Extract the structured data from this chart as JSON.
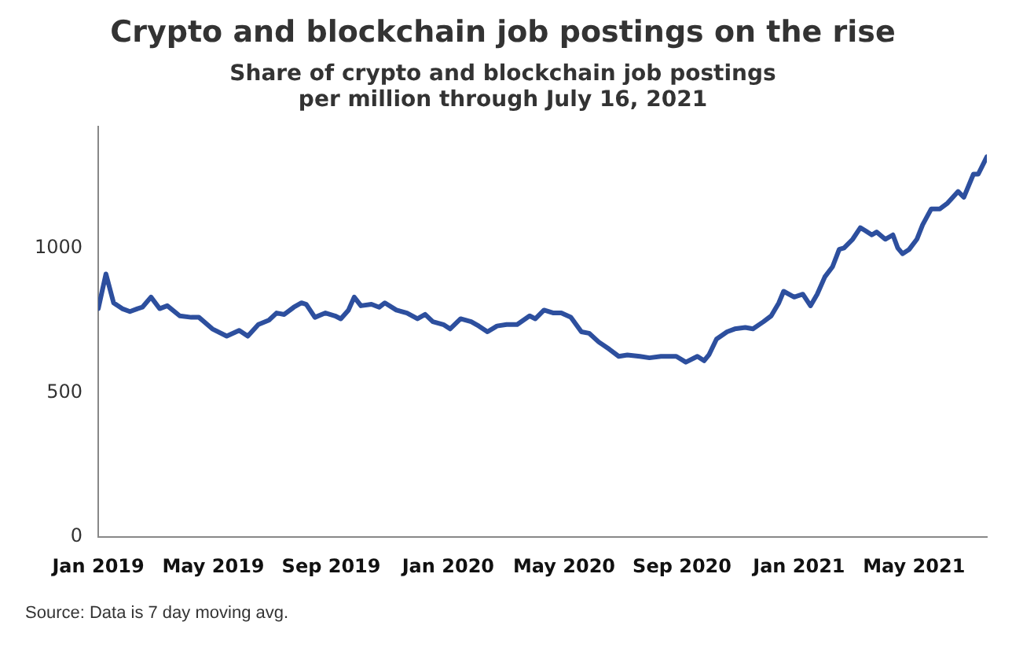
{
  "chart_data": {
    "type": "line",
    "title": "Crypto and blockchain job postings on the rise",
    "subtitle": "Share of crypto and blockchain job postings\nper million through July 16, 2021",
    "annotations": [
      "Source: Data is 7 day moving avg."
    ],
    "x": [
      "2019-01-01",
      "2019-01-09",
      "2019-01-17",
      "2019-01-26",
      "2019-02-03",
      "2019-02-11",
      "2019-02-16",
      "2019-02-25",
      "2019-03-06",
      "2019-03-14",
      "2019-03-27",
      "2019-04-08",
      "2019-04-16",
      "2019-04-30",
      "2019-05-15",
      "2019-05-28",
      "2019-06-06",
      "2019-06-17",
      "2019-06-28",
      "2019-07-06",
      "2019-07-14",
      "2019-07-24",
      "2019-08-01",
      "2019-08-06",
      "2019-08-15",
      "2019-08-26",
      "2019-09-05",
      "2019-09-11",
      "2019-09-19",
      "2019-09-25",
      "2019-10-02",
      "2019-10-13",
      "2019-10-21",
      "2019-10-27",
      "2019-11-08",
      "2019-11-19",
      "2019-11-30",
      "2019-12-08",
      "2019-12-16",
      "2019-12-27",
      "2020-01-03",
      "2020-01-14",
      "2020-01-25",
      "2020-02-02",
      "2020-02-11",
      "2020-02-21",
      "2020-03-02",
      "2020-03-13",
      "2020-03-26",
      "2020-04-01",
      "2020-04-10",
      "2020-04-20",
      "2020-04-28",
      "2020-05-08",
      "2020-05-19",
      "2020-05-27",
      "2020-06-06",
      "2020-06-17",
      "2020-06-27",
      "2020-07-06",
      "2020-07-19",
      "2020-07-29",
      "2020-08-10",
      "2020-08-18",
      "2020-08-26",
      "2020-09-05",
      "2020-09-17",
      "2020-09-24",
      "2020-09-29",
      "2020-10-07",
      "2020-10-18",
      "2020-10-26",
      "2020-11-06",
      "2020-11-14",
      "2020-11-25",
      "2020-12-03",
      "2020-12-11",
      "2020-12-16",
      "2020-12-27",
      "2021-01-05",
      "2021-01-13",
      "2021-01-20",
      "2021-01-28",
      "2021-02-05",
      "2021-02-12",
      "2021-02-17",
      "2021-02-26",
      "2021-03-06",
      "2021-03-11",
      "2021-03-18",
      "2021-03-23",
      "2021-04-01",
      "2021-04-09",
      "2021-04-14",
      "2021-04-19",
      "2021-04-26",
      "2021-05-04",
      "2021-05-10",
      "2021-05-19",
      "2021-05-28",
      "2021-06-05",
      "2021-06-16",
      "2021-06-22",
      "2021-07-02",
      "2021-07-07",
      "2021-07-16"
    ],
    "series": [
      {
        "color": "#2d4f9e",
        "values": [
          790,
          910,
          810,
          790,
          780,
          790,
          795,
          830,
          790,
          800,
          765,
          760,
          760,
          720,
          695,
          715,
          695,
          735,
          750,
          775,
          770,
          795,
          810,
          805,
          760,
          775,
          765,
          755,
          785,
          830,
          800,
          805,
          795,
          810,
          785,
          775,
          755,
          770,
          745,
          735,
          720,
          755,
          745,
          730,
          710,
          730,
          735,
          735,
          765,
          755,
          785,
          775,
          775,
          760,
          710,
          705,
          675,
          650,
          625,
          630,
          625,
          620,
          625,
          625,
          625,
          605,
          625,
          610,
          630,
          685,
          710,
          720,
          725,
          720,
          745,
          765,
          810,
          850,
          830,
          840,
          800,
          840,
          900,
          935,
          995,
          1000,
          1030,
          1070,
          1060,
          1045,
          1055,
          1030,
          1045,
          1000,
          980,
          995,
          1030,
          1080,
          1135,
          1135,
          1155,
          1195,
          1175,
          1255,
          1255,
          1315
        ]
      }
    ],
    "xlim": [
      "2019-01-01",
      "2021-07-16"
    ],
    "xticks": [
      {
        "value": "2019-01-01",
        "label": "Jan 2019"
      },
      {
        "value": "2019-05-01",
        "label": "May 2019"
      },
      {
        "value": "2019-09-01",
        "label": "Sep 2019"
      },
      {
        "value": "2020-01-01",
        "label": "Jan 2020"
      },
      {
        "value": "2020-05-01",
        "label": "May 2020"
      },
      {
        "value": "2020-09-01",
        "label": "Sep 2020"
      },
      {
        "value": "2021-01-01",
        "label": "Jan 2021"
      },
      {
        "value": "2021-05-01",
        "label": "May 2021"
      }
    ],
    "ylim": [
      0,
      1420
    ],
    "yticks": [
      0,
      500,
      1000
    ],
    "grid": false,
    "legend": false,
    "marker": "none",
    "line_style": "solid"
  }
}
